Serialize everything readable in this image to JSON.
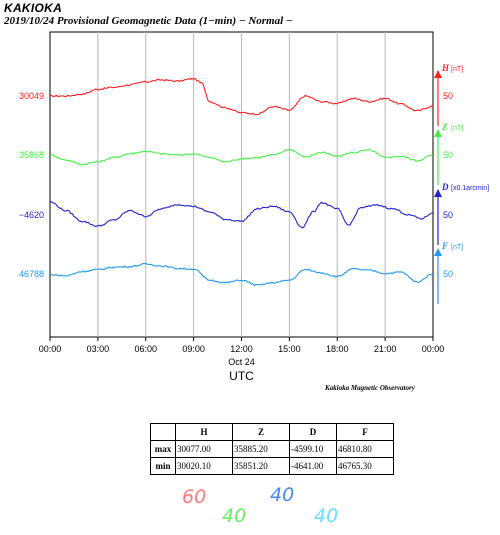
{
  "header": {
    "station": "KAKIOKA",
    "subtitle": "2019/10/24  Provisional Geomagnetic Data (1−min)  − Normal −"
  },
  "credit": "Kakioka Magnetic Observatory",
  "chart_data": {
    "type": "line",
    "xlabel": "UTC",
    "date_label": "Oct 24",
    "x_range_hours": [
      0,
      24
    ],
    "x_ticks": [
      "00:00",
      "03:00",
      "06:00",
      "09:00",
      "12:00",
      "15:00",
      "18:00",
      "21:00",
      "00:00"
    ],
    "grid": true,
    "series": [
      {
        "name": "H",
        "unit": "[nT]",
        "color": "#ff2020",
        "baseline": "30049",
        "scale": "50",
        "points": [
          [
            0,
            30049
          ],
          [
            1,
            30049
          ],
          [
            2,
            30052
          ],
          [
            3,
            30060
          ],
          [
            4,
            30063
          ],
          [
            5,
            30067
          ],
          [
            6,
            30072
          ],
          [
            7,
            30075
          ],
          [
            8,
            30073
          ],
          [
            9,
            30077
          ],
          [
            9.5,
            30070
          ],
          [
            10,
            30040
          ],
          [
            11,
            30030
          ],
          [
            12,
            30022
          ],
          [
            13,
            30020
          ],
          [
            14,
            30032
          ],
          [
            15,
            30026
          ],
          [
            16,
            30049
          ],
          [
            17,
            30040
          ],
          [
            18,
            30037
          ],
          [
            19,
            30045
          ],
          [
            20,
            30040
          ],
          [
            21,
            30045
          ],
          [
            22,
            30036
          ],
          [
            23,
            30025
          ],
          [
            24,
            30033
          ]
        ]
      },
      {
        "name": "Z",
        "unit": "[nT]",
        "color": "#44ee44",
        "baseline": "35868",
        "scale": "50",
        "points": [
          [
            0,
            35868
          ],
          [
            1,
            35860
          ],
          [
            2,
            35853
          ],
          [
            3,
            35857
          ],
          [
            4,
            35864
          ],
          [
            5,
            35870
          ],
          [
            6,
            35874
          ],
          [
            7,
            35870
          ],
          [
            8,
            35868
          ],
          [
            9,
            35870
          ],
          [
            10,
            35864
          ],
          [
            11,
            35857
          ],
          [
            12,
            35862
          ],
          [
            13,
            35864
          ],
          [
            14,
            35868
          ],
          [
            15,
            35877
          ],
          [
            16,
            35865
          ],
          [
            17,
            35872
          ],
          [
            18,
            35866
          ],
          [
            19,
            35872
          ],
          [
            20,
            35876
          ],
          [
            21,
            35864
          ],
          [
            22,
            35866
          ],
          [
            23,
            35859
          ],
          [
            24,
            35868
          ]
        ]
      },
      {
        "name": "D",
        "unit": "[x0.1arcmin]",
        "color": "#2222cc",
        "baseline": "-4620",
        "scale": "50",
        "points": [
          [
            0,
            -4599
          ],
          [
            1,
            -4613
          ],
          [
            2,
            -4630
          ],
          [
            3,
            -4638
          ],
          [
            4,
            -4628
          ],
          [
            5,
            -4613
          ],
          [
            6,
            -4622
          ],
          [
            7,
            -4610
          ],
          [
            8,
            -4603
          ],
          [
            9,
            -4606
          ],
          [
            10,
            -4615
          ],
          [
            11,
            -4627
          ],
          [
            12,
            -4630
          ],
          [
            13,
            -4610
          ],
          [
            14,
            -4606
          ],
          [
            15,
            -4615
          ],
          [
            15.8,
            -4640
          ],
          [
            16.5,
            -4615
          ],
          [
            17,
            -4600
          ],
          [
            18,
            -4610
          ],
          [
            18.7,
            -4636
          ],
          [
            19.5,
            -4608
          ],
          [
            20.5,
            -4604
          ],
          [
            21.5,
            -4610
          ],
          [
            22.5,
            -4620
          ],
          [
            23.3,
            -4626
          ],
          [
            24,
            -4616
          ]
        ]
      },
      {
        "name": "F",
        "unit": "[nT]",
        "color": "#2299ee",
        "baseline": "46788",
        "scale": "50",
        "points": [
          [
            0,
            46787
          ],
          [
            1,
            46785
          ],
          [
            2,
            46792
          ],
          [
            3,
            46795
          ],
          [
            4,
            46799
          ],
          [
            5,
            46800
          ],
          [
            6,
            46804
          ],
          [
            7,
            46801
          ],
          [
            8,
            46797
          ],
          [
            9,
            46796
          ],
          [
            10,
            46778
          ],
          [
            11,
            46774
          ],
          [
            12,
            46778
          ],
          [
            13,
            46770
          ],
          [
            14,
            46774
          ],
          [
            15,
            46778
          ],
          [
            16,
            46795
          ],
          [
            17,
            46790
          ],
          [
            18,
            46784
          ],
          [
            19,
            46796
          ],
          [
            20,
            46794
          ],
          [
            21,
            46789
          ],
          [
            22,
            46791
          ],
          [
            23,
            46775
          ],
          [
            24,
            46788
          ]
        ]
      }
    ]
  },
  "stats": {
    "headers": [
      "H",
      "Z",
      "D",
      "F"
    ],
    "rows": [
      {
        "label": "max",
        "values": [
          "30077.00",
          "35885.20",
          "-4599.10",
          "46810.80"
        ]
      },
      {
        "label": "min",
        "values": [
          "30020.10",
          "35851.20",
          "-4641.00",
          "46765.30"
        ]
      }
    ]
  },
  "notes": [
    {
      "text": "60",
      "color": "#ff7a7a"
    },
    {
      "text": "40",
      "color": "#4488ee"
    },
    {
      "text": "40",
      "color": "#66ee66"
    },
    {
      "text": "40",
      "color": "#66ddff"
    }
  ]
}
